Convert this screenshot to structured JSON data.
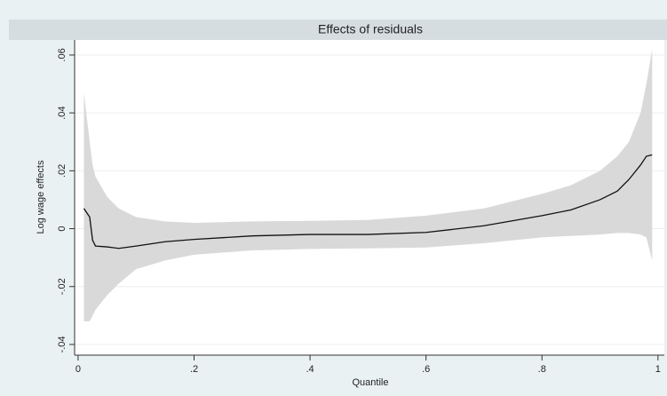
{
  "chart_data": {
    "type": "line",
    "title": "Effects of residuals",
    "x_label": "Quantile",
    "y_label": "Log wage effects",
    "x": [
      0.01,
      0.02,
      0.025,
      0.03,
      0.05,
      0.07,
      0.1,
      0.15,
      0.2,
      0.3,
      0.4,
      0.5,
      0.6,
      0.7,
      0.8,
      0.85,
      0.9,
      0.93,
      0.95,
      0.97,
      0.98,
      0.99
    ],
    "series": [
      {
        "type": "area",
        "color": "#d9d9d9",
        "lower": [
          -0.032,
          -0.032,
          -0.03,
          -0.028,
          -0.023,
          -0.019,
          -0.014,
          -0.011,
          -0.009,
          -0.0075,
          -0.007,
          -0.0068,
          -0.0065,
          -0.005,
          -0.003,
          -0.0025,
          -0.002,
          -0.0015,
          -0.0015,
          -0.002,
          -0.003,
          -0.011
        ],
        "upper": [
          0.047,
          0.03,
          0.022,
          0.018,
          0.011,
          0.007,
          0.004,
          0.0025,
          0.002,
          0.0025,
          0.0027,
          0.003,
          0.0045,
          0.007,
          0.012,
          0.015,
          0.02,
          0.025,
          0.03,
          0.04,
          0.05,
          0.062
        ]
      },
      {
        "type": "line",
        "color": "#111111",
        "values": [
          0.007,
          0.004,
          -0.004,
          -0.006,
          -0.0063,
          -0.0068,
          -0.006,
          -0.0045,
          -0.0037,
          -0.0025,
          -0.002,
          -0.002,
          -0.0013,
          0.001,
          0.0045,
          0.0065,
          0.01,
          0.013,
          0.017,
          0.022,
          0.025,
          0.0255
        ]
      }
    ],
    "xlim": [
      -0.006,
      1.011
    ],
    "ylim": [
      -0.0437,
      0.0652
    ],
    "xticks": [
      0,
      {
        "value": 0.2,
        "label": ".2"
      },
      {
        "value": 0.4,
        "label": ".4"
      },
      {
        "value": 0.6,
        "label": ".6"
      },
      {
        "value": 0.8,
        "label": ".8"
      },
      1
    ],
    "yticks": [
      {
        "value": -0.04,
        "label": "-.04"
      },
      {
        "value": -0.02,
        "label": "-.02"
      },
      0,
      {
        "value": 0.02,
        "label": ".02"
      },
      {
        "value": 0.04,
        "label": ".04"
      },
      {
        "value": 0.06,
        "label": ".06"
      }
    ],
    "grid": true
  }
}
